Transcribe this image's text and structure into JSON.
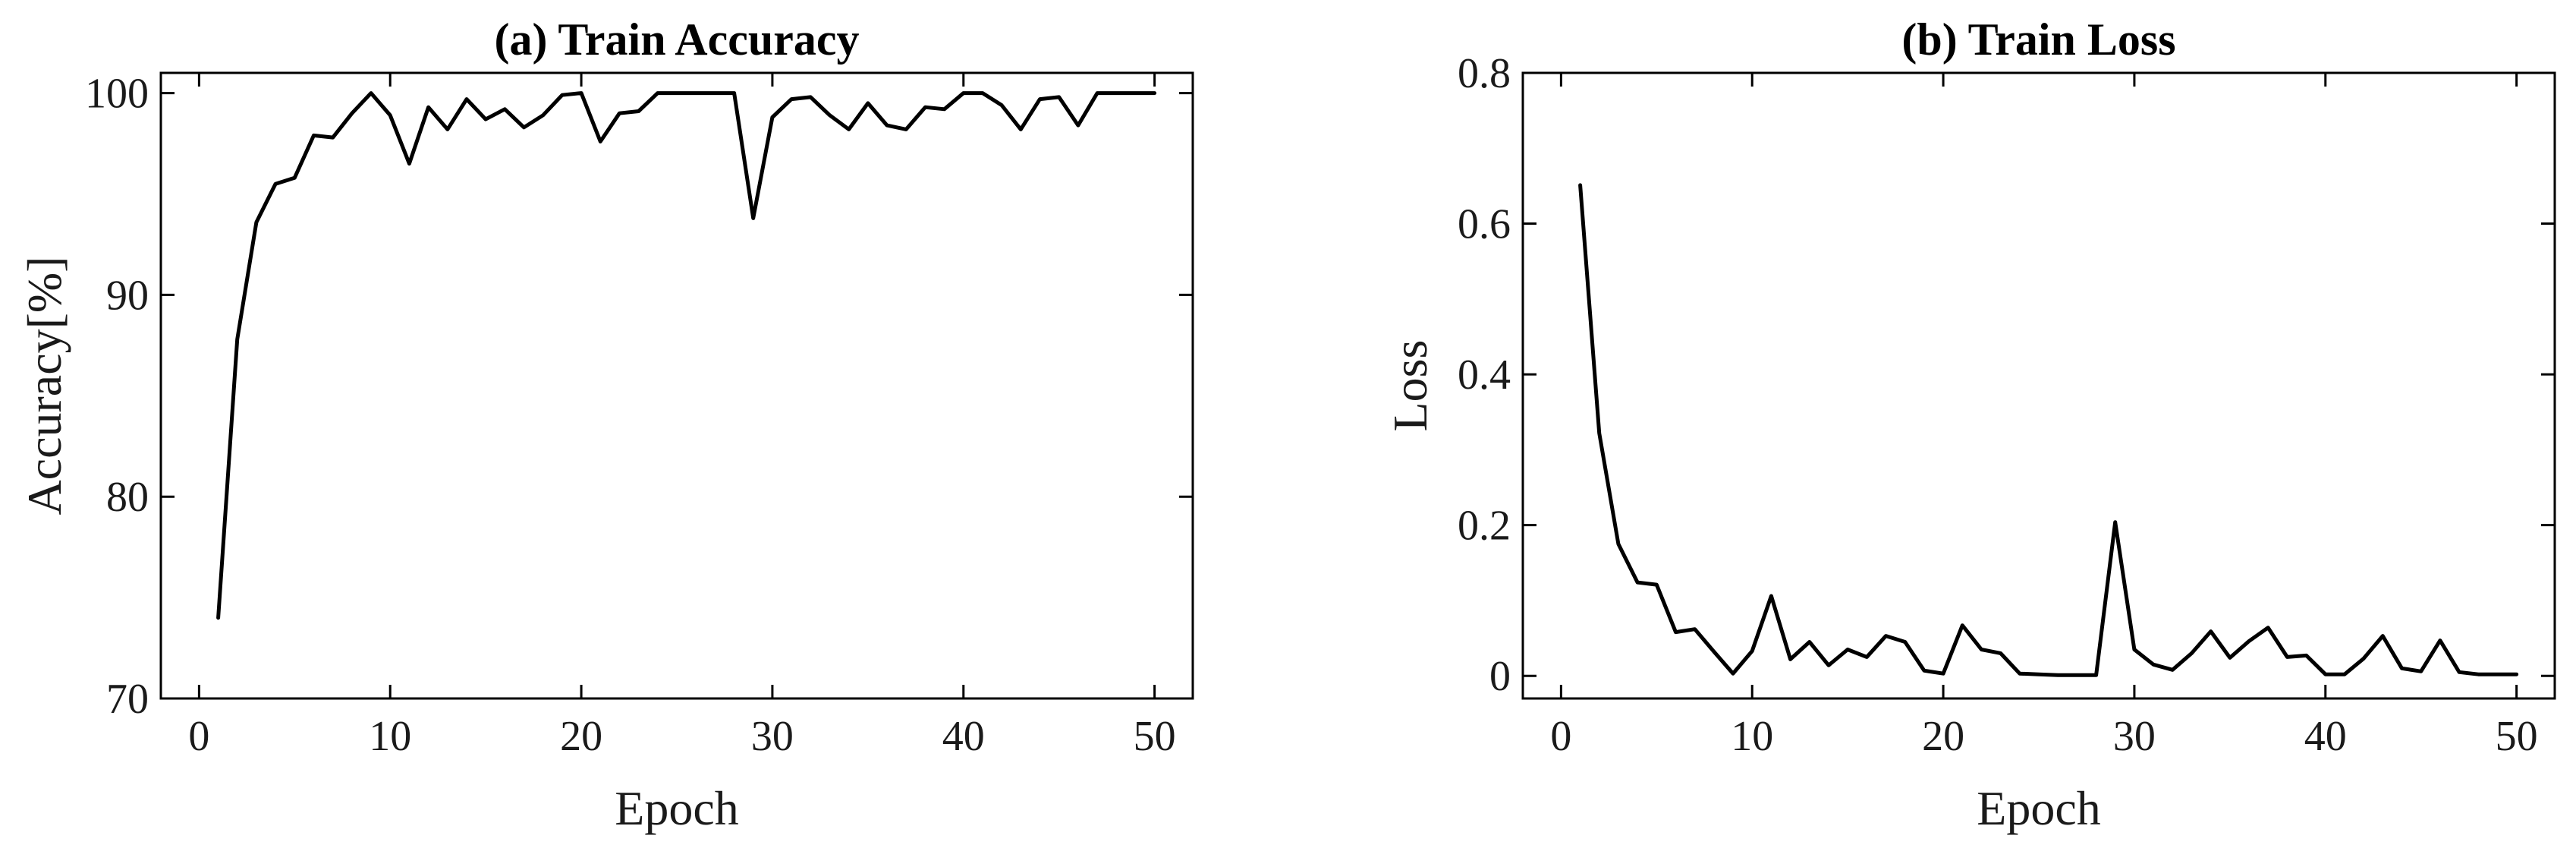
{
  "chart_data": [
    {
      "type": "line",
      "title": "(a) Train Accuracy",
      "xlabel": "Epoch",
      "ylabel": "Accuracy[%]",
      "xlim": [
        -2,
        52
      ],
      "ylim": [
        70,
        101
      ],
      "xticks": [
        0,
        10,
        20,
        30,
        40,
        50
      ],
      "yticks": [
        70,
        80,
        90,
        100
      ],
      "grid": false,
      "line_color": "#000000",
      "series": [
        {
          "x": [
            1,
            2,
            3,
            4,
            5,
            6,
            7,
            8,
            9,
            10,
            11,
            12,
            13,
            14,
            15,
            16,
            17,
            18,
            19,
            20,
            21,
            22,
            23,
            24,
            25,
            26,
            27,
            28,
            29,
            30,
            31,
            32,
            33,
            34,
            35,
            36,
            37,
            38,
            39,
            40,
            41,
            42,
            43,
            44,
            45,
            46,
            47,
            48,
            49,
            50
          ],
          "values": [
            74.0,
            87.8,
            93.6,
            95.5,
            95.8,
            97.9,
            97.8,
            99.0,
            100.0,
            98.9,
            96.5,
            99.3,
            98.2,
            99.7,
            98.7,
            99.2,
            98.3,
            98.9,
            99.9,
            100.0,
            97.6,
            99.0,
            99.1,
            100.0,
            100.0,
            100.0,
            100.0,
            100.0,
            93.8,
            98.8,
            99.7,
            99.8,
            98.9,
            98.2,
            99.5,
            98.4,
            98.2,
            99.3,
            99.2,
            100.0,
            100.0,
            99.4,
            98.2,
            99.7,
            99.8,
            98.4,
            100.0,
            100.0,
            100.0,
            100.0
          ]
        }
      ]
    },
    {
      "type": "line",
      "title": "(b) Train Loss",
      "xlabel": "Epoch",
      "ylabel": "Loss",
      "xlim": [
        -2,
        52
      ],
      "ylim": [
        -0.03,
        0.8
      ],
      "xticks": [
        0,
        10,
        20,
        30,
        40,
        50
      ],
      "yticks": [
        0,
        0.2,
        0.4,
        0.6,
        0.8
      ],
      "ytick_labels": [
        "0",
        "0.2",
        "0.4",
        "0.6",
        "0.8"
      ],
      "grid": false,
      "line_color": "#000000",
      "series": [
        {
          "x": [
            1,
            2,
            3,
            4,
            5,
            6,
            7,
            8,
            9,
            10,
            11,
            12,
            13,
            14,
            15,
            16,
            17,
            18,
            19,
            20,
            21,
            22,
            23,
            24,
            25,
            26,
            27,
            28,
            29,
            30,
            31,
            32,
            33,
            34,
            35,
            36,
            37,
            38,
            39,
            40,
            41,
            42,
            43,
            44,
            45,
            46,
            47,
            48,
            49,
            50
          ],
          "values": [
            0.651,
            0.322,
            0.175,
            0.124,
            0.121,
            0.058,
            0.062,
            0.032,
            0.003,
            0.033,
            0.106,
            0.022,
            0.045,
            0.014,
            0.035,
            0.025,
            0.053,
            0.045,
            0.007,
            0.003,
            0.067,
            0.035,
            0.03,
            0.003,
            0.002,
            0.001,
            0.001,
            0.001,
            0.204,
            0.035,
            0.015,
            0.008,
            0.03,
            0.059,
            0.024,
            0.046,
            0.064,
            0.025,
            0.027,
            0.002,
            0.002,
            0.023,
            0.053,
            0.01,
            0.006,
            0.047,
            0.005,
            0.002,
            0.002,
            0.002
          ]
        }
      ]
    }
  ]
}
